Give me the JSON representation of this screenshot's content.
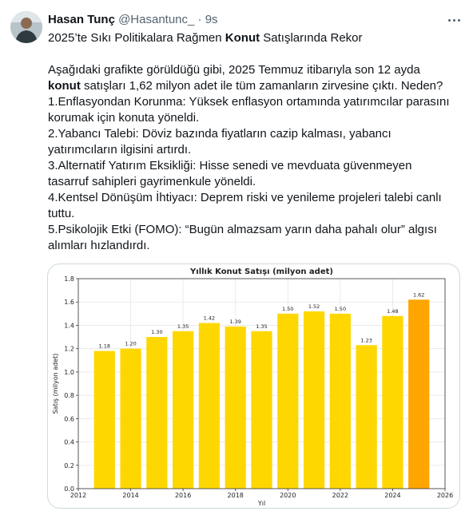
{
  "tweet": {
    "author_name": "Hasan Tunç",
    "handle": "@Hasantunc_",
    "separator": "·",
    "time": "9s",
    "lines": [
      [
        "2025’te Sıkı Politikalara Rağmen ",
        "Konut",
        " Satışlarında Rekor"
      ],
      [],
      [
        "Aşağıdaki grafikte görüldüğü gibi, 2025 Temmuz itibarıyla son 12 ayda"
      ],
      [
        "",
        "konut",
        " satışları 1,62 milyon adet ile tüm zamanların zirvesine çıktı. Neden?"
      ],
      [
        "1.Enflasyondan Korunma: Yüksek enflasyon ortamında yatırımcılar parasını"
      ],
      [
        "korumak için konuta yöneldi."
      ],
      [
        "2.Yabancı Talebi: Döviz bazında fiyatların cazip kalması, yabancı"
      ],
      [
        "yatırımcıların ilgisini artırdı."
      ],
      [
        "3.Alternatif Yatırım Eksikliği: Hisse senedi ve mevduata güvenmeyen"
      ],
      [
        "tasarruf sahipleri gayrimenkule yöneldi."
      ],
      [
        "4.Kentsel Dönüşüm İhtiyacı: Deprem riski ve yenileme projeleri talebi canlı"
      ],
      [
        "tuttu."
      ],
      [
        "5.Psikolojik Etki (FOMO): “Bugün almazsam yarın daha pahalı olur” algısı"
      ],
      [
        "alımları hızlandırdı."
      ]
    ]
  },
  "colors": {
    "bar": "#FFD700",
    "highlight_bar": "#FFA500",
    "grid": "#e6e6e6",
    "text": "#0f1419",
    "muted": "#536471"
  },
  "chart_data": {
    "type": "bar",
    "title": "Yıllık Konut Satışı (milyon adet)",
    "xlabel": "Yıl",
    "ylabel": "Satış (milyon adet)",
    "x": [
      2013,
      2014,
      2015,
      2016,
      2017,
      2018,
      2019,
      2020,
      2021,
      2022,
      2023,
      2024,
      2025
    ],
    "values": [
      1.18,
      1.2,
      1.3,
      1.35,
      1.42,
      1.39,
      1.35,
      1.5,
      1.52,
      1.5,
      1.23,
      1.48,
      1.62
    ],
    "data_labels": [
      "1.18",
      "1.20",
      "1.30",
      "1.35",
      "1.42",
      "1.39",
      "1.35",
      "1.50",
      "1.52",
      "1.50",
      "1.23",
      "1.48",
      "1.62"
    ],
    "highlight_index": 12,
    "xlim": [
      2012,
      2026
    ],
    "ylim": [
      0,
      1.8
    ],
    "xticks": [
      "2012",
      "2014",
      "2016",
      "2018",
      "2020",
      "2022",
      "2024",
      "2026"
    ],
    "yticks": [
      "0.0",
      "0.2",
      "0.4",
      "0.6",
      "0.8",
      "1.0",
      "1.2",
      "1.4",
      "1.6",
      "1.8"
    ],
    "grid": true,
    "legend": "none"
  }
}
